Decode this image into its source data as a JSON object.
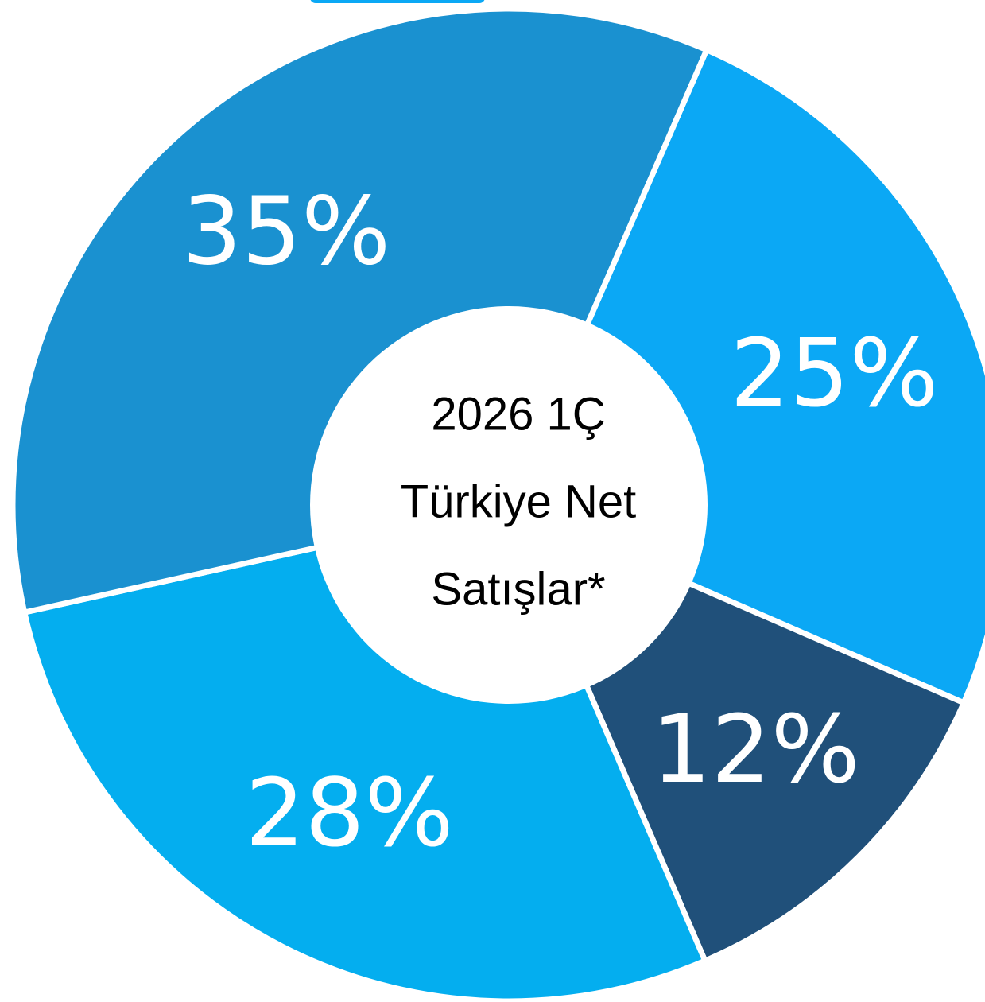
{
  "chart_data": {
    "type": "donut",
    "center_label": [
      "2026 1Ç",
      "Türkiye Net",
      "Satışlar*"
    ],
    "categories": [
      null,
      null,
      null,
      null
    ],
    "values": [
      25,
      12,
      28,
      35
    ],
    "value_labels": [
      "25%",
      "12%",
      "28%",
      "35%"
    ],
    "colors": [
      "#0ba8f5",
      "#20507a",
      "#04aeef",
      "#1a91d0"
    ]
  }
}
